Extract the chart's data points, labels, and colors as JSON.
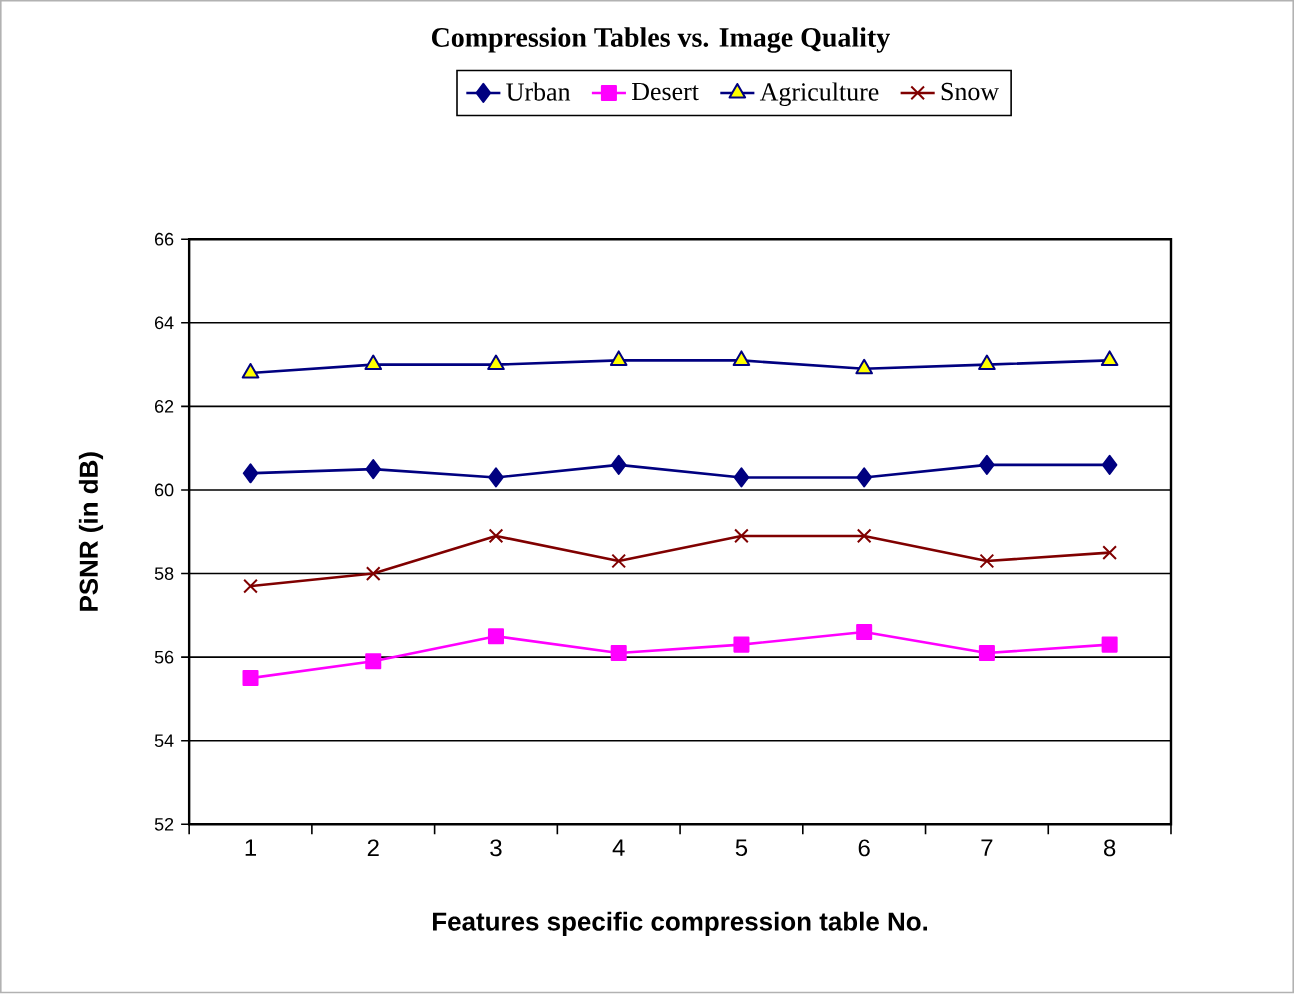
{
  "chart_data": {
    "type": "line",
    "title": "Compression Tables vs. Image Quality",
    "xlabel": "Features specific compression table No.",
    "ylabel": "PSNR (in dB)",
    "categories": [
      "1",
      "2",
      "3",
      "4",
      "5",
      "6",
      "7",
      "8"
    ],
    "ylim": [
      52,
      66
    ],
    "yticks": [
      52,
      54,
      56,
      58,
      60,
      62,
      64,
      66
    ],
    "grid": "y",
    "legend": "top",
    "series": [
      {
        "name": "Urban",
        "color": "#000080",
        "marker": "diamond",
        "values": [
          60.4,
          60.5,
          60.3,
          60.6,
          60.3,
          60.3,
          60.6,
          60.6
        ]
      },
      {
        "name": "Desert",
        "color": "#ff00ff",
        "marker": "square",
        "values": [
          55.5,
          55.9,
          56.5,
          56.1,
          56.3,
          56.6,
          56.1,
          56.3
        ]
      },
      {
        "name": "Agriculture",
        "color": "#000080",
        "marker": "triangle",
        "colors": [
          "#ffff00",
          "#ffff00",
          "#ffff00",
          "#ffff00",
          "#ffff00",
          "#ffff00",
          "#ffff00",
          "#ffff00"
        ],
        "values": [
          62.8,
          63.0,
          63.0,
          63.1,
          63.1,
          62.9,
          63.0,
          63.1
        ]
      },
      {
        "name": "Snow",
        "color": "#800000",
        "marker": "cross",
        "values": [
          57.7,
          58.0,
          58.9,
          58.3,
          58.9,
          58.9,
          58.3,
          58.5
        ]
      }
    ]
  }
}
